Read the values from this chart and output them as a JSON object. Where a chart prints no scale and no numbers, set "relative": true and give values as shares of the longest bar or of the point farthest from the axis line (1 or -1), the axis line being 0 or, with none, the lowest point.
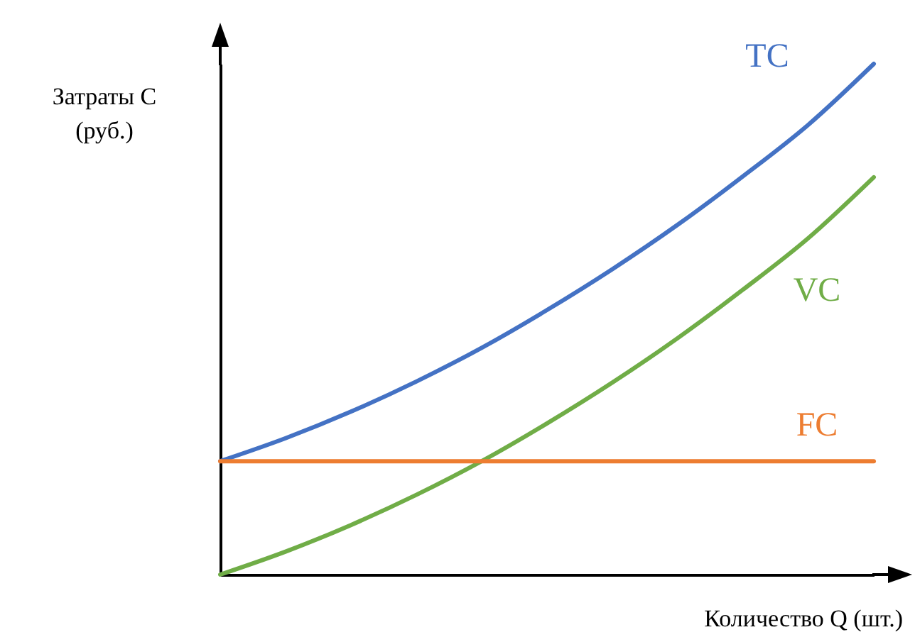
{
  "chart_data": {
    "type": "line",
    "xlabel": "Количество Q (шт.)",
    "ylabel": "Затраты C\n(руб.)",
    "relative": true,
    "grid": false,
    "legend": false,
    "categories": [
      null,
      null,
      null,
      null,
      null,
      null,
      null,
      null,
      null,
      null,
      null
    ],
    "series": [
      {
        "name": "TC",
        "color": "#4472c4",
        "values": [
          0.222,
          0.267,
          0.319,
          0.378,
          0.444,
          0.518,
          0.598,
          0.685,
          0.78,
          0.881,
          1
        ]
      },
      {
        "name": "VC",
        "color": "#70ad47",
        "values": [
          0,
          0.045,
          0.097,
          0.156,
          0.222,
          0.296,
          0.376,
          0.463,
          0.558,
          0.659,
          0.778
        ]
      },
      {
        "name": "FC",
        "color": "#ed7d31",
        "values": [
          0.222,
          0.222,
          0.222,
          0.222,
          0.222,
          0.222,
          0.222,
          0.222,
          0.222,
          0.222,
          0.222
        ]
      }
    ]
  }
}
